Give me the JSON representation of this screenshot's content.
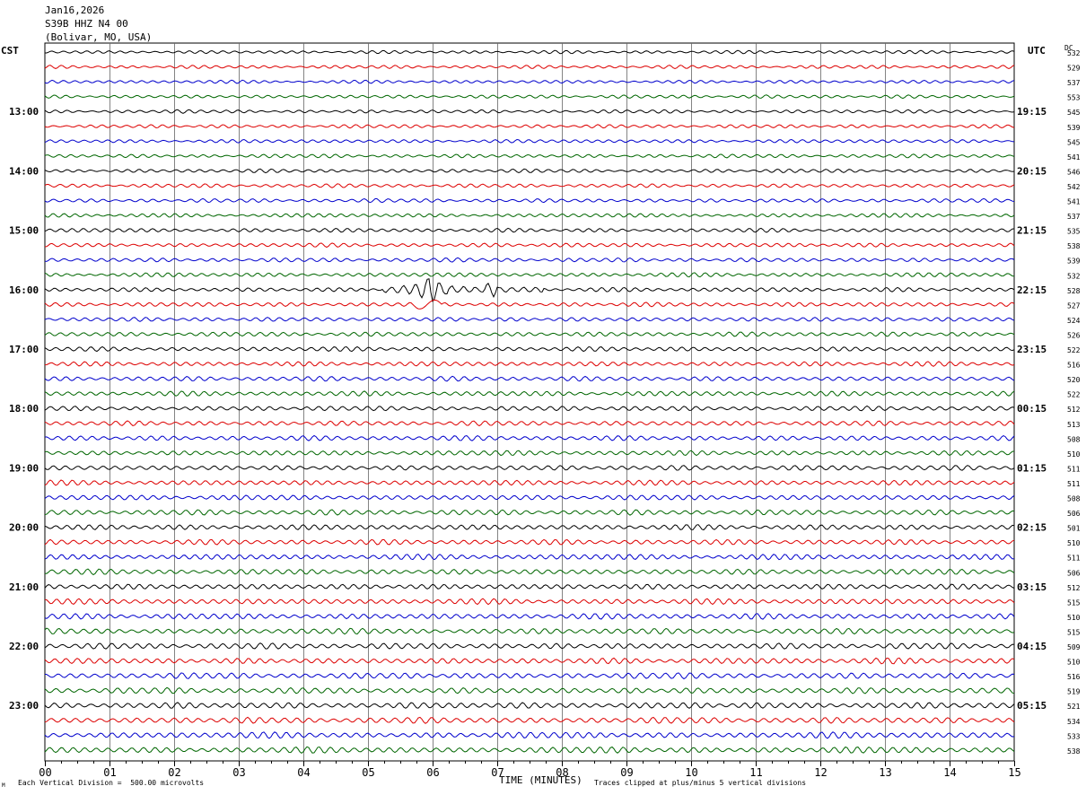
{
  "header": {
    "date": "Jan16,2026",
    "station": "S39B HHZ N4 00",
    "location": "(Bolivar, MO, USA)"
  },
  "left_tz": "CST",
  "right_tz": "UTC",
  "dc_label": "DC",
  "footer": {
    "scale": "Each Vertical Division =  500.00 microvolts",
    "clip": "Traces clipped at plus/minus 5 vertical divisions",
    "corner_mark": "M"
  },
  "trace_colors": [
    "#000000",
    "#dd0000",
    "#0000cc",
    "#006600"
  ],
  "chart_data": {
    "type": "line",
    "title": "",
    "xlabel": "TIME (MINUTES)",
    "x_ticks": [
      "00",
      "01",
      "02",
      "03",
      "04",
      "05",
      "06",
      "07",
      "08",
      "09",
      "10",
      "11",
      "12",
      "13",
      "14",
      "15"
    ],
    "xlim": [
      0,
      15
    ],
    "grid": true,
    "left_hour_labels": [
      "13:00",
      "14:00",
      "15:00",
      "16:00",
      "17:00",
      "18:00",
      "19:00",
      "20:00",
      "21:00",
      "22:00",
      "23:00"
    ],
    "right_hour_labels": [
      "19:15",
      "20:15",
      "21:15",
      "22:15",
      "23:15",
      "00:15",
      "01:15",
      "02:15",
      "03:15",
      "04:15",
      "05:15"
    ],
    "traces_per_hour": 4,
    "dc_offsets": [
      532,
      529,
      537,
      553,
      545,
      539,
      545,
      541,
      546,
      542,
      541,
      537,
      535,
      538,
      539,
      532,
      528,
      527,
      524,
      526,
      522,
      516,
      520,
      522,
      512,
      513,
      508,
      510,
      511,
      511,
      508,
      506,
      501,
      510,
      511,
      506,
      512,
      515,
      510,
      515,
      509,
      510,
      516,
      519,
      521,
      534,
      533,
      538
    ],
    "events": [
      {
        "trace_index": 16,
        "start_min": 5.2,
        "end_min": 7.7,
        "peak_min": 5.95
      }
    ]
  }
}
